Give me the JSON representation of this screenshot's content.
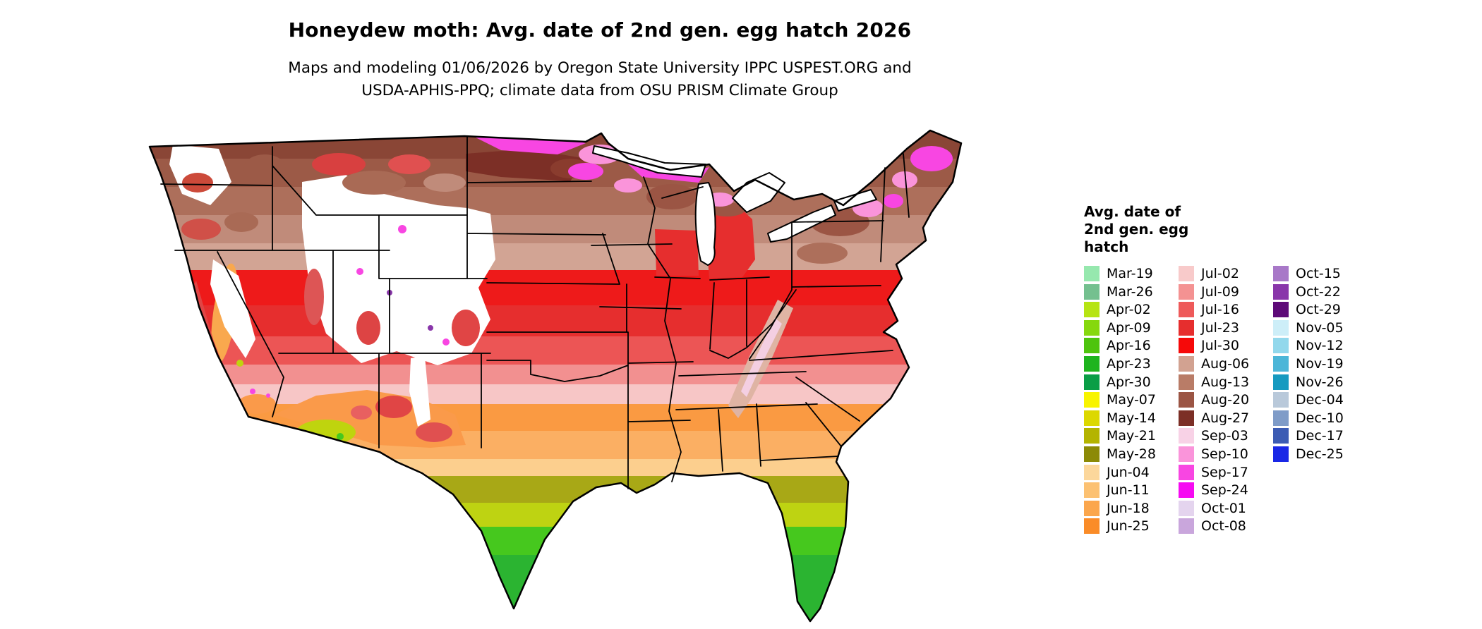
{
  "header": {
    "title": "Honeydew moth: Avg. date of 2nd gen. egg hatch 2026",
    "subtitle_line1": "Maps and modeling 01/06/2026 by Oregon State University IPPC USPEST.ORG and",
    "subtitle_line2": "USDA-APHIS-PPQ; climate data from OSU PRISM Climate Group"
  },
  "map": {
    "name": "us-choropleth-map-2nd-gen-egg-hatch",
    "no_data_color": "#ffffff",
    "outline_color": "#000000"
  },
  "legend": {
    "title_lines": [
      "Avg. date of",
      "2nd gen. egg",
      "hatch"
    ],
    "columns": [
      {
        "entries": [
          {
            "label": "Mar-19",
            "color": "#96e8ae"
          },
          {
            "label": "Mar-26",
            "color": "#74c08f"
          },
          {
            "label": "Apr-02",
            "color": "#b6e414"
          },
          {
            "label": "Apr-09",
            "color": "#86d80e"
          },
          {
            "label": "Apr-16",
            "color": "#4ec40e"
          },
          {
            "label": "Apr-23",
            "color": "#1eb41e"
          },
          {
            "label": "Apr-30",
            "color": "#0a9e46"
          },
          {
            "label": "May-07",
            "color": "#f8f400"
          },
          {
            "label": "May-14",
            "color": "#dcd800"
          },
          {
            "label": "May-21",
            "color": "#b4b400"
          },
          {
            "label": "May-28",
            "color": "#8c8a06"
          },
          {
            "label": "Jun-04",
            "color": "#fcd79b"
          },
          {
            "label": "Jun-11",
            "color": "#fcc172"
          },
          {
            "label": "Jun-18",
            "color": "#fba64c"
          },
          {
            "label": "Jun-25",
            "color": "#fa8c28"
          }
        ]
      },
      {
        "entries": [
          {
            "label": "Jul-02",
            "color": "#f8caca"
          },
          {
            "label": "Jul-09",
            "color": "#f49292"
          },
          {
            "label": "Jul-16",
            "color": "#ee5a5a"
          },
          {
            "label": "Jul-23",
            "color": "#e62e2e"
          },
          {
            "label": "Jul-30",
            "color": "#f60909"
          },
          {
            "label": "Aug-06",
            "color": "#d2a291"
          },
          {
            "label": "Aug-13",
            "color": "#b97c67"
          },
          {
            "label": "Aug-20",
            "color": "#9b5544"
          },
          {
            "label": "Aug-27",
            "color": "#7c2f26"
          },
          {
            "label": "Sep-03",
            "color": "#f8d2e6"
          },
          {
            "label": "Sep-10",
            "color": "#fa94da"
          },
          {
            "label": "Sep-17",
            "color": "#f846e2"
          },
          {
            "label": "Sep-24",
            "color": "#f60af2"
          },
          {
            "label": "Oct-01",
            "color": "#e4d4ee"
          },
          {
            "label": "Oct-08",
            "color": "#c9a6dc"
          }
        ]
      },
      {
        "entries": [
          {
            "label": "Oct-15",
            "color": "#a878c8"
          },
          {
            "label": "Oct-22",
            "color": "#8936aa"
          },
          {
            "label": "Oct-29",
            "color": "#5e0a78"
          },
          {
            "label": "Nov-05",
            "color": "#cdeef8"
          },
          {
            "label": "Nov-12",
            "color": "#92d8ec"
          },
          {
            "label": "Nov-19",
            "color": "#4cb6d8"
          },
          {
            "label": "Nov-26",
            "color": "#169ac0"
          },
          {
            "label": "Dec-04",
            "color": "#b9c9da"
          },
          {
            "label": "Dec-10",
            "color": "#7f9cc8"
          },
          {
            "label": "Dec-17",
            "color": "#3c5cb4"
          },
          {
            "label": "Dec-25",
            "color": "#1a28e6"
          }
        ]
      }
    ]
  }
}
